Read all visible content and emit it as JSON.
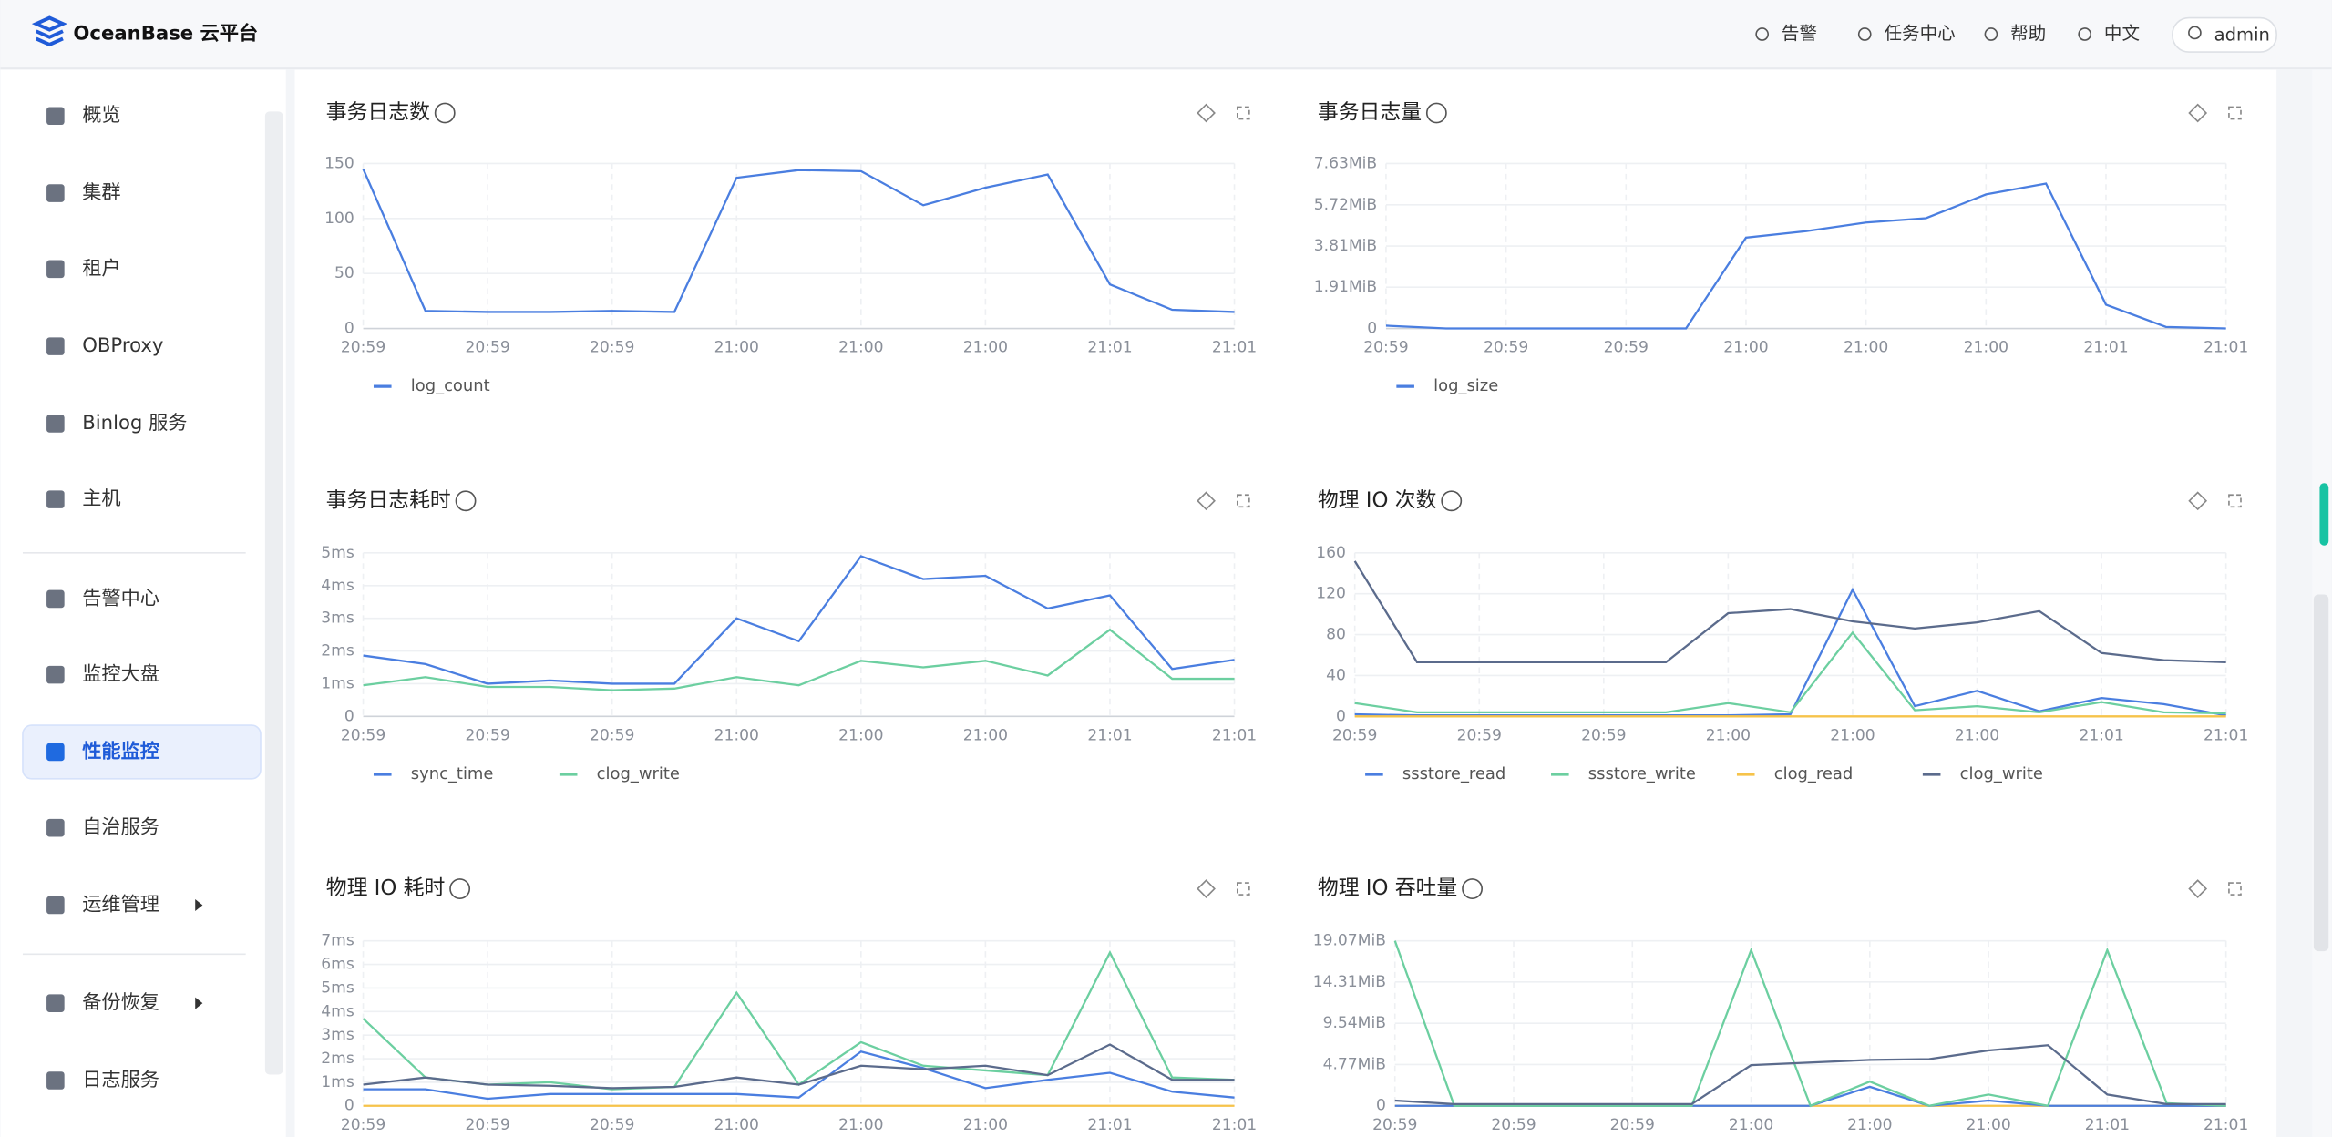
{
  "header": {
    "logo": "OceanBase 云平台",
    "actions": [
      "告警",
      "任务中心",
      "帮助",
      "中文"
    ],
    "user": "admin"
  },
  "nav": [
    {
      "label": "概览"
    },
    {
      "label": "集群"
    },
    {
      "label": "租户"
    },
    {
      "label": "OBProxy"
    },
    {
      "label": "Binlog 服务"
    },
    {
      "label": "主机"
    },
    {
      "label": "告警中心"
    },
    {
      "label": "监控大盘"
    },
    {
      "label": "性能监控",
      "active": true
    },
    {
      "label": "自治服务"
    },
    {
      "label": "运维管理",
      "submenu": true
    },
    {
      "label": "备份恢复",
      "submenu": true
    },
    {
      "label": "日志服务"
    }
  ],
  "charts": [
    {
      "type": "line",
      "title": "事务日志数",
      "x_labels": [
        "20:59",
        "20:59",
        "20:59",
        "21:00",
        "21:00",
        "21:00",
        "21:01",
        "21:01"
      ],
      "ylim": [
        0,
        150
      ],
      "yticks": [
        0,
        50,
        100,
        150
      ],
      "series": [
        {
          "name": "log_count",
          "color": "#4a7ee0",
          "values": [
            145,
            16,
            15,
            15,
            16,
            15,
            137,
            144,
            143,
            112,
            128,
            140,
            40,
            17,
            15
          ]
        }
      ]
    },
    {
      "type": "line",
      "title": "事务日志量",
      "x_labels": [
        "20:59",
        "20:59",
        "20:59",
        "21:00",
        "21:00",
        "21:00",
        "21:01",
        "21:01"
      ],
      "ylim": [
        0,
        7.63
      ],
      "yticks": [
        0,
        {
          "value": 1.91,
          "label": "1.91MiB"
        },
        {
          "value": 3.81,
          "label": "3.81MiB"
        },
        {
          "value": 5.72,
          "label": "5.72MiB"
        },
        {
          "value": 7.63,
          "label": "7.63MiB"
        }
      ],
      "series": [
        {
          "name": "log_size",
          "color": "#4a7ee0",
          "values": [
            0.13,
            0,
            0,
            0,
            0,
            0,
            4.2,
            4.5,
            4.9,
            5.1,
            6.2,
            6.7,
            1.1,
            0.07,
            0
          ]
        }
      ]
    },
    {
      "type": "line",
      "title": "事务日志耗时",
      "x_labels": [
        "20:59",
        "20:59",
        "20:59",
        "21:00",
        "21:00",
        "21:00",
        "21:01",
        "21:01"
      ],
      "ylim": [
        0,
        5
      ],
      "yticks": [
        0,
        {
          "value": 1,
          "label": "1ms"
        },
        {
          "value": 2,
          "label": "2ms"
        },
        {
          "value": 3,
          "label": "3ms"
        },
        {
          "value": 4,
          "label": "4ms"
        },
        {
          "value": 5,
          "label": "5ms"
        }
      ],
      "series": [
        {
          "name": "sync_time",
          "color": "#4a7ee0",
          "values": [
            1.86,
            1.6,
            1.0,
            1.1,
            1.0,
            1.0,
            3.0,
            2.3,
            4.9,
            4.2,
            4.3,
            3.3,
            3.7,
            1.45,
            1.73
          ]
        },
        {
          "name": "clog_write",
          "color": "#6ccfa0",
          "values": [
            0.95,
            1.2,
            0.9,
            0.9,
            0.8,
            0.85,
            1.2,
            0.95,
            1.7,
            1.5,
            1.7,
            1.25,
            2.65,
            1.15,
            1.15
          ]
        }
      ]
    },
    {
      "type": "line",
      "title": "物理 IO 次数",
      "x_labels": [
        "20:59",
        "20:59",
        "20:59",
        "21:00",
        "21:00",
        "21:00",
        "21:01",
        "21:01"
      ],
      "ylim": [
        0,
        160
      ],
      "yticks": [
        0,
        40,
        80,
        120,
        160
      ],
      "series": [
        {
          "name": "ssstore_read",
          "color": "#4a7ee0",
          "values": [
            2,
            1,
            1,
            1,
            1,
            1,
            1,
            2,
            124,
            10,
            25,
            5,
            18,
            12,
            1
          ]
        },
        {
          "name": "ssstore_write",
          "color": "#6ccfa0",
          "values": [
            13,
            4,
            4,
            4,
            4,
            4,
            13,
            4,
            82,
            6,
            10,
            4,
            14,
            4,
            3
          ]
        },
        {
          "name": "clog_read",
          "color": "#f6c34a",
          "values": [
            0,
            0,
            0,
            0,
            0,
            0,
            0,
            0,
            0,
            0,
            0,
            0,
            0,
            0,
            0
          ]
        },
        {
          "name": "clog_write",
          "color": "#5b6b8c",
          "values": [
            152,
            53,
            53,
            53,
            53,
            53,
            101,
            105,
            93,
            86,
            92,
            103,
            62,
            55,
            53
          ]
        }
      ]
    },
    {
      "type": "line",
      "title": "物理 IO 耗时",
      "x_labels": [
        "20:59",
        "20:59",
        "20:59",
        "21:00",
        "21:00",
        "21:00",
        "21:01",
        "21:01"
      ],
      "ylim": [
        0,
        7
      ],
      "yticks": [
        0,
        {
          "value": 1,
          "label": "1ms"
        },
        {
          "value": 2,
          "label": "2ms"
        },
        {
          "value": 3,
          "label": "3ms"
        },
        {
          "value": 4,
          "label": "4ms"
        },
        {
          "value": 5,
          "label": "5ms"
        },
        {
          "value": 6,
          "label": "6ms"
        },
        {
          "value": 7,
          "label": "7ms"
        }
      ],
      "series": [
        {
          "color": "#f6c34a",
          "values": [
            0,
            0,
            0,
            0,
            0,
            0,
            0,
            0,
            0,
            0,
            0,
            0,
            0,
            0,
            0
          ]
        },
        {
          "color": "#4a7ee0",
          "values": [
            0.7,
            0.7,
            0.3,
            0.5,
            0.5,
            0.5,
            0.5,
            0.35,
            2.3,
            1.6,
            0.75,
            1.1,
            1.4,
            0.6,
            0.35
          ]
        },
        {
          "color": "#6ccfa0",
          "values": [
            3.7,
            1.2,
            0.9,
            1.0,
            0.7,
            0.8,
            4.8,
            0.9,
            2.7,
            1.7,
            1.5,
            1.3,
            6.5,
            1.2,
            1.1
          ]
        },
        {
          "color": "#5b6b8c",
          "values": [
            0.9,
            1.2,
            0.9,
            0.85,
            0.75,
            0.8,
            1.2,
            0.9,
            1.7,
            1.55,
            1.7,
            1.3,
            2.6,
            1.1,
            1.1
          ]
        }
      ]
    },
    {
      "type": "line",
      "title": "物理 IO 吞吐量",
      "x_labels": [
        "20:59",
        "20:59",
        "20:59",
        "21:00",
        "21:00",
        "21:00",
        "21:01",
        "21:01"
      ],
      "ylim": [
        0,
        19.07
      ],
      "yticks": [
        0,
        {
          "value": 4.77,
          "label": "4.77MiB"
        },
        {
          "value": 9.54,
          "label": "9.54MiB"
        },
        {
          "value": 14.31,
          "label": "14.31MiB"
        },
        {
          "value": 19.07,
          "label": "19.07MiB"
        }
      ],
      "series": [
        {
          "color": "#f6c34a",
          "values": [
            0,
            0,
            0,
            0,
            0,
            0,
            0,
            0,
            0,
            0,
            0,
            0,
            0,
            0,
            0
          ]
        },
        {
          "color": "#4a7ee0",
          "values": [
            0,
            0,
            0,
            0,
            0,
            0,
            0,
            0,
            2.2,
            0,
            0.6,
            0,
            0,
            0,
            0
          ]
        },
        {
          "color": "#6ccfa0",
          "values": [
            19.07,
            0,
            0,
            0,
            0,
            0,
            18,
            0,
            2.8,
            0,
            1.3,
            0,
            18,
            0.3,
            0
          ]
        },
        {
          "color": "#5b6b8c",
          "values": [
            0.6,
            0.2,
            0.2,
            0.2,
            0.2,
            0.2,
            4.7,
            5.0,
            5.3,
            5.4,
            6.4,
            7.0,
            1.3,
            0.2,
            0.2
          ]
        }
      ]
    }
  ]
}
